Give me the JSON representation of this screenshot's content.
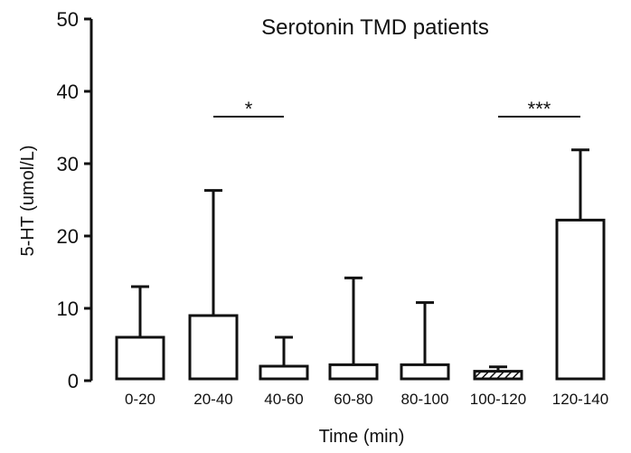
{
  "chart_data": {
    "type": "bar",
    "title": "Serotonin TMD patients",
    "xlabel": "Time (min)",
    "ylabel": "5-HT (umol/L)",
    "ylim": [
      0,
      50
    ],
    "yticks": [
      0,
      10,
      20,
      30,
      40,
      50
    ],
    "categories": [
      "0-20",
      "20-40",
      "40-60",
      "60-80",
      "80-100",
      "100-120",
      "120-140"
    ],
    "values": [
      6.0,
      9.0,
      2.0,
      2.2,
      2.2,
      1.3,
      22.2
    ],
    "error_upper": [
      13.0,
      26.3,
      6.0,
      14.2,
      10.8,
      1.9,
      31.9
    ],
    "hatched": [
      false,
      false,
      false,
      false,
      false,
      true,
      false
    ],
    "grid": false,
    "significance": [
      {
        "from": "20-40",
        "to": "40-60",
        "label": "*",
        "y": 36.5
      },
      {
        "from": "100-120",
        "to": "120-140",
        "label": "***",
        "y": 36.5
      }
    ]
  }
}
